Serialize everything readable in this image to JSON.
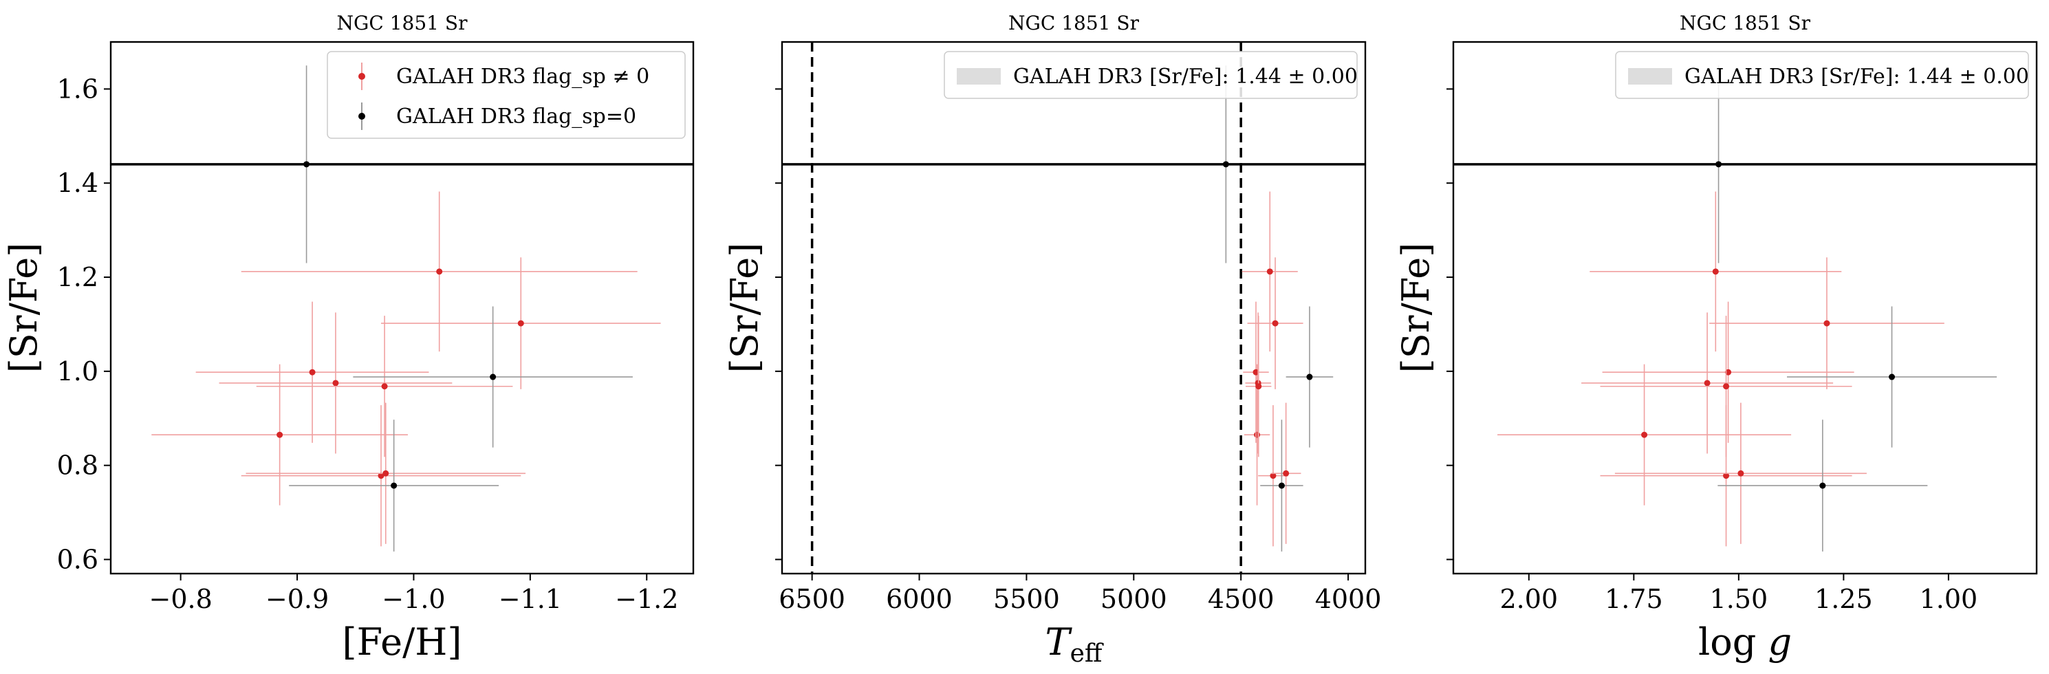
{
  "chart_data": [
    {
      "type": "scatter",
      "title": "NGC 1851 Sr",
      "xlabel": "[Fe/H]",
      "ylabel": "[Sr/Fe]",
      "xlim": [
        -0.74,
        -1.24
      ],
      "ylim": [
        0.57,
        1.7
      ],
      "xticks": [
        -0.8,
        -0.9,
        -1.0,
        -1.1,
        -1.2
      ],
      "xtick_labels": [
        "−0.8",
        "−0.9",
        "−1.0",
        "−1.1",
        "−1.2"
      ],
      "yticks": [
        0.6,
        0.8,
        1.0,
        1.2,
        1.4,
        1.6
      ],
      "ytick_labels": [
        "0.6",
        "0.8",
        "1.0",
        "1.2",
        "1.4",
        "1.6"
      ],
      "hlines": [
        1.44
      ],
      "vlines": [],
      "legend": {
        "placement": "top-right",
        "entries": [
          {
            "marker": "red-errorbar",
            "label": "GALAH DR3 flag_sp ≠ 0"
          },
          {
            "marker": "black-errorbar",
            "label": "GALAH DR3 flag_sp=0"
          }
        ]
      },
      "series": [
        {
          "color": "#d62728",
          "points": [
            {
              "x": -0.885,
              "y": 0.865,
              "xerr": 0.11,
              "yerr": 0.15
            },
            {
              "x": -0.913,
              "y": 0.998,
              "xerr": 0.1,
              "yerr": 0.15
            },
            {
              "x": -0.933,
              "y": 0.975,
              "xerr": 0.1,
              "yerr": 0.15
            },
            {
              "x": -0.975,
              "y": 0.968,
              "xerr": 0.11,
              "yerr": 0.15
            },
            {
              "x": -0.972,
              "y": 0.778,
              "xerr": 0.12,
              "yerr": 0.15
            },
            {
              "x": -0.976,
              "y": 0.783,
              "xerr": 0.12,
              "yerr": 0.15
            },
            {
              "x": -1.022,
              "y": 1.212,
              "xerr": 0.17,
              "yerr": 0.17
            },
            {
              "x": -1.092,
              "y": 1.102,
              "xerr": 0.12,
              "yerr": 0.14
            }
          ]
        },
        {
          "color": "#000000",
          "points": [
            {
              "x": -0.908,
              "y": 1.44,
              "xerr": 0.0,
              "yerr": 0.21
            },
            {
              "x": -0.983,
              "y": 0.757,
              "xerr": 0.09,
              "yerr": 0.14
            },
            {
              "x": -1.068,
              "y": 0.988,
              "xerr": 0.12,
              "yerr": 0.15
            }
          ]
        }
      ]
    },
    {
      "type": "scatter",
      "title": "NGC 1851 Sr",
      "xlabel": "T_eff",
      "ylabel": "[Sr/Fe]",
      "xlim": [
        6640,
        3920
      ],
      "ylim": [
        0.57,
        1.7
      ],
      "xticks": [
        6500,
        6000,
        5500,
        5000,
        4500,
        4000
      ],
      "xtick_labels": [
        "6500",
        "6000",
        "5500",
        "5000",
        "4500",
        "4000"
      ],
      "yticks": [
        0.6,
        0.8,
        1.0,
        1.2,
        1.4,
        1.6
      ],
      "ytick_labels": [
        "",
        "",
        "",
        "",
        "",
        ""
      ],
      "hlines": [
        1.44
      ],
      "vlines": [
        6500,
        4500
      ],
      "legend": {
        "placement": "top-right",
        "entries": [
          {
            "marker": "gray-band",
            "label": "GALAH DR3 [Sr/Fe]: 1.44 ± 0.00"
          }
        ]
      },
      "series": [
        {
          "color": "#d62728",
          "points": [
            {
              "x": 4425,
              "y": 0.865,
              "xerr": 60,
              "yerr": 0.15
            },
            {
              "x": 4430,
              "y": 0.998,
              "xerr": 60,
              "yerr": 0.15
            },
            {
              "x": 4420,
              "y": 0.975,
              "xerr": 60,
              "yerr": 0.15
            },
            {
              "x": 4418,
              "y": 0.968,
              "xerr": 60,
              "yerr": 0.15
            },
            {
              "x": 4350,
              "y": 0.778,
              "xerr": 70,
              "yerr": 0.15
            },
            {
              "x": 4290,
              "y": 0.783,
              "xerr": 70,
              "yerr": 0.15
            },
            {
              "x": 4365,
              "y": 1.212,
              "xerr": 130,
              "yerr": 0.17
            },
            {
              "x": 4340,
              "y": 1.102,
              "xerr": 130,
              "yerr": 0.14
            }
          ]
        },
        {
          "color": "#000000",
          "points": [
            {
              "x": 4570,
              "y": 1.44,
              "xerr": 0,
              "yerr": 0.21
            },
            {
              "x": 4310,
              "y": 0.757,
              "xerr": 100,
              "yerr": 0.14
            },
            {
              "x": 4180,
              "y": 0.988,
              "xerr": 110,
              "yerr": 0.15
            }
          ]
        }
      ]
    },
    {
      "type": "scatter",
      "title": "NGC 1851 Sr",
      "xlabel": "log g",
      "ylabel": "[Sr/Fe]",
      "xlim": [
        2.18,
        0.79
      ],
      "ylim": [
        0.57,
        1.7
      ],
      "xticks": [
        2.0,
        1.75,
        1.5,
        1.25,
        1.0
      ],
      "xtick_labels": [
        "2.00",
        "1.75",
        "1.50",
        "1.25",
        "1.00"
      ],
      "yticks": [
        0.6,
        0.8,
        1.0,
        1.2,
        1.4,
        1.6
      ],
      "ytick_labels": [
        "",
        "",
        "",
        "",
        "",
        ""
      ],
      "hlines": [
        1.44
      ],
      "vlines": [],
      "legend": {
        "placement": "top-right",
        "entries": [
          {
            "marker": "gray-band",
            "label": "GALAH DR3 [Sr/Fe]: 1.44 ± 0.00"
          }
        ]
      },
      "series": [
        {
          "color": "#d62728",
          "points": [
            {
              "x": 1.725,
              "y": 0.865,
              "xerr": 0.35,
              "yerr": 0.15
            },
            {
              "x": 1.525,
              "y": 0.998,
              "xerr": 0.3,
              "yerr": 0.15
            },
            {
              "x": 1.575,
              "y": 0.975,
              "xerr": 0.3,
              "yerr": 0.15
            },
            {
              "x": 1.53,
              "y": 0.968,
              "xerr": 0.3,
              "yerr": 0.15
            },
            {
              "x": 1.53,
              "y": 0.778,
              "xerr": 0.3,
              "yerr": 0.15
            },
            {
              "x": 1.495,
              "y": 0.783,
              "xerr": 0.3,
              "yerr": 0.15
            },
            {
              "x": 1.555,
              "y": 1.212,
              "xerr": 0.3,
              "yerr": 0.17
            },
            {
              "x": 1.29,
              "y": 1.102,
              "xerr": 0.28,
              "yerr": 0.14
            }
          ]
        },
        {
          "color": "#000000",
          "points": [
            {
              "x": 1.548,
              "y": 1.44,
              "xerr": 0.0,
              "yerr": 0.21
            },
            {
              "x": 1.3,
              "y": 0.757,
              "xerr": 0.25,
              "yerr": 0.14
            },
            {
              "x": 1.135,
              "y": 0.988,
              "xerr": 0.25,
              "yerr": 0.15
            }
          ]
        }
      ]
    }
  ]
}
